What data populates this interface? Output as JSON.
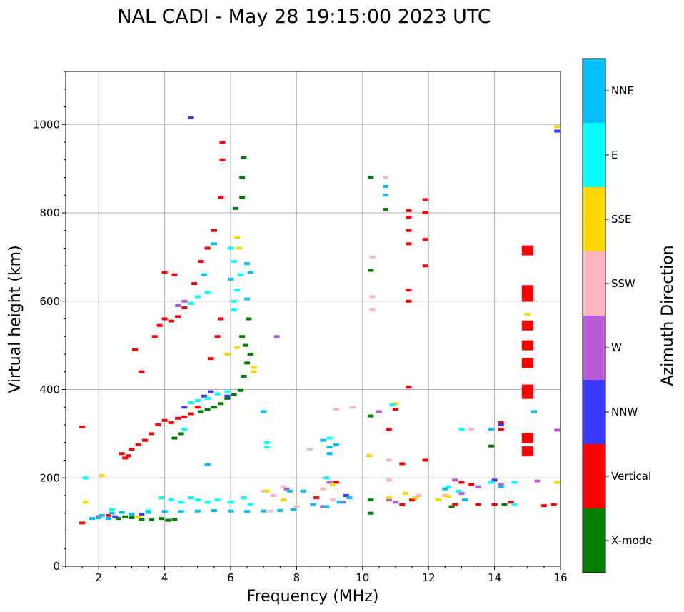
{
  "chart_data": {
    "type": "scatter",
    "title": "NAL CADI - May 28 19:15:00 2023 UTC",
    "xlabel": "Frequency (MHz)",
    "ylabel": "Virtual height (km)",
    "xlim": [
      1,
      16
    ],
    "ylim": [
      0,
      1120
    ],
    "xticks": [
      2,
      4,
      6,
      8,
      10,
      12,
      14,
      16
    ],
    "yticks": [
      0,
      200,
      400,
      600,
      800,
      1000
    ],
    "grid": true,
    "colorbar": {
      "label": "Azimuth Direction",
      "categories": [
        {
          "name": "X-mode",
          "color": "#008000"
        },
        {
          "name": "Vertical",
          "color": "#ff0000"
        },
        {
          "name": "NNW",
          "color": "#3a3aff"
        },
        {
          "name": "W",
          "color": "#b85ad6"
        },
        {
          "name": "SSW",
          "color": "#ffb6c1"
        },
        {
          "name": "SSE",
          "color": "#ffd700"
        },
        {
          "name": "E",
          "color": "#00ffff"
        },
        {
          "name": "NNE",
          "color": "#00bfff"
        }
      ]
    },
    "series": [
      {
        "name": "X-mode",
        "points": [
          [
            2.6,
            108
          ],
          [
            2.8,
            112
          ],
          [
            3.0,
            110
          ],
          [
            3.3,
            106
          ],
          [
            3.6,
            105
          ],
          [
            3.9,
            108
          ],
          [
            4.1,
            104
          ],
          [
            4.3,
            106
          ],
          [
            5.1,
            350
          ],
          [
            5.3,
            355
          ],
          [
            5.5,
            360
          ],
          [
            5.7,
            368
          ],
          [
            5.9,
            380
          ],
          [
            6.1,
            388
          ],
          [
            6.3,
            398
          ],
          [
            6.4,
            430
          ],
          [
            6.5,
            460
          ],
          [
            6.45,
            500
          ],
          [
            6.6,
            480
          ],
          [
            6.35,
            520
          ],
          [
            6.35,
            880
          ],
          [
            6.35,
            835
          ],
          [
            6.4,
            925
          ],
          [
            6.15,
            810
          ],
          [
            4.3,
            290
          ],
          [
            4.5,
            300
          ],
          [
            6.55,
            560
          ],
          [
            10.25,
            150
          ],
          [
            10.25,
            120
          ],
          [
            10.25,
            340
          ],
          [
            10.25,
            670
          ],
          [
            10.25,
            880
          ],
          [
            10.7,
            808
          ],
          [
            12.7,
            135
          ],
          [
            13.9,
            272
          ],
          [
            14.3,
            140
          ]
        ]
      },
      {
        "name": "Vertical",
        "points": [
          [
            1.5,
            315
          ],
          [
            1.5,
            98
          ],
          [
            2.0,
            112
          ],
          [
            2.3,
            115
          ],
          [
            2.7,
            255
          ],
          [
            2.8,
            245
          ],
          [
            2.9,
            250
          ],
          [
            3.0,
            265
          ],
          [
            3.2,
            275
          ],
          [
            3.4,
            285
          ],
          [
            3.6,
            300
          ],
          [
            3.8,
            320
          ],
          [
            4.0,
            330
          ],
          [
            4.2,
            325
          ],
          [
            4.4,
            335
          ],
          [
            4.6,
            338
          ],
          [
            4.8,
            345
          ],
          [
            5.0,
            360
          ],
          [
            4.0,
            560
          ],
          [
            4.2,
            555
          ],
          [
            4.4,
            565
          ],
          [
            3.7,
            520
          ],
          [
            3.85,
            545
          ],
          [
            4.6,
            585
          ],
          [
            4.9,
            640
          ],
          [
            5.1,
            690
          ],
          [
            5.3,
            720
          ],
          [
            5.5,
            760
          ],
          [
            5.7,
            835
          ],
          [
            5.75,
            920
          ],
          [
            5.75,
            960
          ],
          [
            4.0,
            665
          ],
          [
            4.3,
            660
          ],
          [
            5.4,
            470
          ],
          [
            5.6,
            520
          ],
          [
            5.7,
            560
          ],
          [
            3.1,
            490
          ],
          [
            3.3,
            440
          ],
          [
            11.4,
            600
          ],
          [
            11.4,
            625
          ],
          [
            11.4,
            730
          ],
          [
            11.4,
            760
          ],
          [
            11.4,
            790
          ],
          [
            11.4,
            805
          ],
          [
            11.4,
            405
          ],
          [
            11.9,
            240
          ],
          [
            11.9,
            680
          ],
          [
            11.9,
            740
          ],
          [
            11.9,
            800
          ],
          [
            11.9,
            830
          ],
          [
            10.8,
            310
          ],
          [
            11.0,
            355
          ],
          [
            11.2,
            232
          ],
          [
            11.5,
            150
          ],
          [
            11.2,
            140
          ],
          [
            12.8,
            140
          ],
          [
            13.0,
            190
          ],
          [
            13.3,
            185
          ],
          [
            13.5,
            140
          ],
          [
            14.0,
            140
          ],
          [
            14.2,
            310
          ],
          [
            14.2,
            325
          ],
          [
            14.5,
            145
          ],
          [
            15.0,
            260
          ],
          [
            15.0,
            290
          ],
          [
            15.0,
            390
          ],
          [
            15.0,
            400
          ],
          [
            15.0,
            460
          ],
          [
            15.0,
            500
          ],
          [
            15.0,
            545
          ],
          [
            15.0,
            610
          ],
          [
            15.0,
            625
          ],
          [
            15.0,
            715
          ],
          [
            15.5,
            137
          ],
          [
            15.8,
            140
          ],
          [
            9.2,
            190
          ],
          [
            8.6,
            155
          ]
        ]
      },
      {
        "name": "NNW",
        "points": [
          [
            2.5,
            112
          ],
          [
            3.3,
            118
          ],
          [
            4.8,
            1015
          ],
          [
            5.2,
            385
          ],
          [
            5.4,
            395
          ],
          [
            5.9,
            385
          ],
          [
            15.9,
            985
          ],
          [
            14.2,
            320
          ],
          [
            14.0,
            195
          ],
          [
            9.5,
            160
          ],
          [
            4.6,
            360
          ]
        ]
      },
      {
        "name": "W",
        "points": [
          [
            4.4,
            590
          ],
          [
            4.6,
            600
          ],
          [
            7.4,
            520
          ],
          [
            8.8,
            135
          ],
          [
            9.0,
            190
          ],
          [
            9.4,
            145
          ],
          [
            10.8,
            150
          ],
          [
            11.0,
            145
          ],
          [
            12.8,
            195
          ],
          [
            13.5,
            180
          ],
          [
            15.3,
            193
          ],
          [
            15.9,
            308
          ],
          [
            13.0,
            165
          ],
          [
            14.2,
            185
          ],
          [
            7.7,
            175
          ],
          [
            10.5,
            350
          ]
        ]
      },
      {
        "name": "SSW",
        "points": [
          [
            7.0,
            170
          ],
          [
            7.3,
            160
          ],
          [
            7.6,
            180
          ],
          [
            8.2,
            170
          ],
          [
            8.4,
            265
          ],
          [
            8.8,
            175
          ],
          [
            9.1,
            150
          ],
          [
            9.2,
            355
          ],
          [
            9.7,
            360
          ],
          [
            10.2,
            250
          ],
          [
            10.3,
            580
          ],
          [
            10.3,
            610
          ],
          [
            10.3,
            700
          ],
          [
            10.8,
            240
          ],
          [
            10.8,
            195
          ],
          [
            11.7,
            160
          ],
          [
            12.5,
            160
          ],
          [
            13.3,
            310
          ],
          [
            10.7,
            880
          ],
          [
            7.2,
            125
          ],
          [
            8.0,
            135
          ]
        ]
      },
      {
        "name": "SSE",
        "points": [
          [
            1.6,
            145
          ],
          [
            2.1,
            205
          ],
          [
            3.2,
            112
          ],
          [
            5.9,
            480
          ],
          [
            6.2,
            495
          ],
          [
            6.7,
            440
          ],
          [
            6.7,
            450
          ],
          [
            7.1,
            170
          ],
          [
            7.6,
            150
          ],
          [
            9.1,
            185
          ],
          [
            10.2,
            250
          ],
          [
            10.8,
            155
          ],
          [
            11.0,
            368
          ],
          [
            11.3,
            165
          ],
          [
            11.6,
            155
          ],
          [
            12.3,
            150
          ],
          [
            12.6,
            158
          ],
          [
            15.0,
            570
          ],
          [
            15.9,
            995
          ],
          [
            15.9,
            190
          ],
          [
            6.2,
            745
          ],
          [
            6.25,
            720
          ]
        ]
      },
      {
        "name": "E",
        "points": [
          [
            1.6,
            200
          ],
          [
            3.5,
            125
          ],
          [
            3.9,
            155
          ],
          [
            4.2,
            150
          ],
          [
            4.5,
            145
          ],
          [
            4.8,
            155
          ],
          [
            5.0,
            150
          ],
          [
            5.3,
            145
          ],
          [
            5.6,
            150
          ],
          [
            6.0,
            145
          ],
          [
            6.4,
            155
          ],
          [
            6.6,
            140
          ],
          [
            4.6,
            310
          ],
          [
            4.8,
            370
          ],
          [
            5.0,
            375
          ],
          [
            5.3,
            380
          ],
          [
            5.6,
            390
          ],
          [
            5.9,
            395
          ],
          [
            4.8,
            595
          ],
          [
            5.0,
            610
          ],
          [
            5.3,
            620
          ],
          [
            6.2,
            625
          ],
          [
            6.1,
            600
          ],
          [
            6.1,
            690
          ],
          [
            6.0,
            720
          ],
          [
            6.1,
            580
          ],
          [
            6.3,
            660
          ],
          [
            8.9,
            200
          ],
          [
            9.0,
            290
          ],
          [
            10.9,
            365
          ],
          [
            12.6,
            180
          ],
          [
            12.9,
            170
          ],
          [
            13.0,
            310
          ],
          [
            13.9,
            190
          ],
          [
            14.6,
            140
          ],
          [
            14.6,
            190
          ],
          [
            2.4,
            128
          ],
          [
            7.1,
            270
          ],
          [
            7.1,
            280
          ]
        ]
      },
      {
        "name": "NNE",
        "points": [
          [
            1.8,
            108
          ],
          [
            2.1,
            115
          ],
          [
            2.4,
            120
          ],
          [
            2.7,
            122
          ],
          [
            3.0,
            118
          ],
          [
            3.5,
            122
          ],
          [
            4.0,
            124
          ],
          [
            4.5,
            124
          ],
          [
            5.0,
            125
          ],
          [
            5.5,
            126
          ],
          [
            6.0,
            125
          ],
          [
            6.5,
            124
          ],
          [
            7.0,
            125
          ],
          [
            7.5,
            126
          ],
          [
            7.9,
            128
          ],
          [
            8.5,
            140
          ],
          [
            8.9,
            135
          ],
          [
            9.3,
            145
          ],
          [
            9.6,
            155
          ],
          [
            7.8,
            170
          ],
          [
            8.2,
            170
          ],
          [
            8.8,
            285
          ],
          [
            9.0,
            270
          ],
          [
            9.2,
            275
          ],
          [
            9.0,
            255
          ],
          [
            5.2,
            660
          ],
          [
            5.5,
            730
          ],
          [
            6.0,
            650
          ],
          [
            6.6,
            665
          ],
          [
            6.5,
            605
          ],
          [
            6.5,
            685
          ],
          [
            5.3,
            230
          ],
          [
            7.0,
            350
          ],
          [
            10.7,
            860
          ],
          [
            10.7,
            840
          ],
          [
            12.5,
            175
          ],
          [
            13.1,
            150
          ],
          [
            13.9,
            310
          ],
          [
            14.2,
            180
          ],
          [
            15.2,
            350
          ],
          [
            2.3,
            108
          ],
          [
            2.0,
            110
          ]
        ]
      }
    ]
  }
}
